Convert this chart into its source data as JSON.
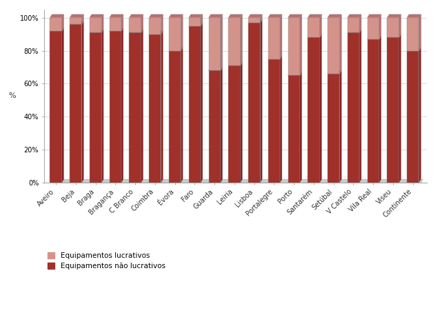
{
  "categories": [
    "Aveiro",
    "Beja",
    "Braga",
    "Bragança",
    "C Branco",
    "Coimbra",
    "Évora",
    "Faro",
    "Guarda",
    "Leiria",
    "Lisboa",
    "Portalegre",
    "Porto",
    "Santarém",
    "Setúbal",
    "V Castelo",
    "Vila Real",
    "Viseu",
    "Continente"
  ],
  "nao_lucrativos": [
    92,
    96,
    91,
    92,
    91,
    90,
    80,
    95,
    68,
    71,
    97,
    75,
    65,
    88,
    66,
    91,
    87,
    88,
    80
  ],
  "lucrativos": [
    8,
    4,
    9,
    8,
    9,
    10,
    20,
    5,
    32,
    29,
    3,
    25,
    35,
    12,
    34,
    9,
    13,
    12,
    20
  ],
  "color_nao_lucrativos": "#A0302A",
  "color_lucrativos": "#D4938A",
  "color_nao_lucrativos_dark": "#7A1F1A",
  "color_lucrativos_dark": "#B06B62",
  "ylabel": "%",
  "ylim": [
    0,
    105
  ],
  "legend_nao_label": "Equipamentos não lucrativos",
  "legend_luc_label": "Equipamentos lucrativos",
  "background_color": "#FFFFFF",
  "bar_width": 0.6,
  "tick_fontsize": 7,
  "ylabel_fontsize": 8,
  "legend_fontsize": 7.5
}
